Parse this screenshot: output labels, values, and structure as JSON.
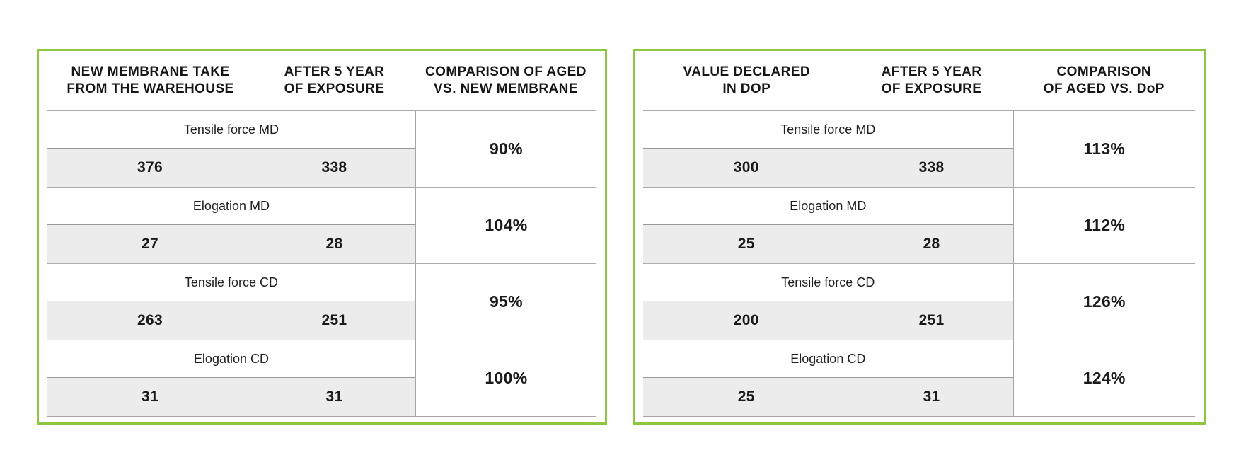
{
  "accent_color": "#8dc63f",
  "line_color": "#a5a5a5",
  "value_cell_color": "#ececec",
  "chart_data": [
    {
      "type": "table",
      "columns": [
        "NEW MEMBRANE TAKE FROM THE WAREHOUSE",
        "AFTER 5 YEAR OF EXPOSURE",
        "COMPARISON OF AGED VS. NEW MEMBRANE"
      ],
      "rows": [
        [
          "Tensile force MD",
          376,
          338,
          "90%"
        ],
        [
          "Elogation MD",
          27,
          28,
          "104%"
        ],
        [
          "Tensile force CD",
          263,
          251,
          "95%"
        ],
        [
          "Elogation CD",
          31,
          31,
          "100%"
        ]
      ]
    },
    {
      "type": "table",
      "columns": [
        "VALUE DECLARED IN DOP",
        "AFTER 5 YEAR OF EXPOSURE",
        "COMPARISON OF AGED VS. DoP"
      ],
      "rows": [
        [
          "Tensile force MD",
          300,
          338,
          "113%"
        ],
        [
          "Elogation MD",
          25,
          28,
          "112%"
        ],
        [
          "Tensile force CD",
          200,
          251,
          "126%"
        ],
        [
          "Elogation CD",
          25,
          31,
          "124%"
        ]
      ]
    }
  ],
  "tables": [
    {
      "headers": [
        "NEW MEMBRANE TAKE\nFROM THE WAREHOUSE",
        "AFTER 5 YEAR\nOF EXPOSURE",
        "COMPARISON OF AGED\nVS. NEW MEMBRANE"
      ],
      "rows": [
        {
          "label": "Tensile force MD",
          "value1": "376",
          "value2": "338",
          "comparison": "90%"
        },
        {
          "label": "Elogation MD",
          "value1": "27",
          "value2": "28",
          "comparison": "104%"
        },
        {
          "label": "Tensile force CD",
          "value1": "263",
          "value2": "251",
          "comparison": "95%"
        },
        {
          "label": "Elogation CD",
          "value1": "31",
          "value2": "31",
          "comparison": "100%"
        }
      ]
    },
    {
      "headers": [
        "VALUE DECLARED\nIN DOP",
        "AFTER 5 YEAR\nOF EXPOSURE",
        "COMPARISON\nOF AGED VS. DoP"
      ],
      "rows": [
        {
          "label": "Tensile force MD",
          "value1": "300",
          "value2": "338",
          "comparison": "113%"
        },
        {
          "label": "Elogation MD",
          "value1": "25",
          "value2": "28",
          "comparison": "112%"
        },
        {
          "label": "Tensile force CD",
          "value1": "200",
          "value2": "251",
          "comparison": "126%"
        },
        {
          "label": "Elogation CD",
          "value1": "25",
          "value2": "31",
          "comparison": "124%"
        }
      ]
    }
  ]
}
